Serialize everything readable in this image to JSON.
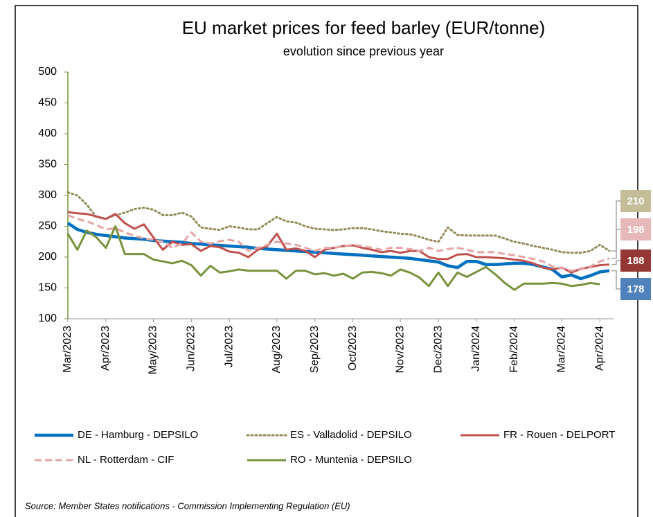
{
  "chart_data": {
    "type": "line",
    "title": "EU market prices for feed barley (EUR/tonne)",
    "subtitle": "evolution since previous year",
    "source": "Source: Member States notifications - Commission Implementing Regulation (EU)",
    "categories": [
      "Mar/2023",
      null,
      null,
      null,
      "Apr/2023",
      null,
      null,
      null,
      null,
      "May/2023",
      null,
      null,
      null,
      "Jun/2023",
      null,
      null,
      null,
      "Jul/2023",
      null,
      null,
      null,
      null,
      "Aug/2023",
      null,
      null,
      null,
      "Sep/2023",
      null,
      null,
      null,
      "Oct/2023",
      null,
      null,
      null,
      null,
      "Nov/2023",
      null,
      null,
      null,
      "Dec/2023",
      null,
      null,
      null,
      "Jan/2024",
      null,
      null,
      null,
      "Feb/2024",
      null,
      null,
      null,
      null,
      "Mar/2024",
      null,
      null,
      null,
      "Apr/2024",
      null
    ],
    "ylim": [
      100,
      500
    ],
    "yticks": [
      100,
      150,
      200,
      250,
      300,
      350,
      400,
      450,
      500
    ],
    "grid": false,
    "series": [
      {
        "name": "DE - Hamburg - DEPSILO",
        "color": "#0070c0",
        "dash": "solid",
        "label_color": "#4f81bd",
        "values": [
          255,
          245,
          240,
          237,
          235,
          233,
          231,
          230,
          229,
          227,
          226,
          225,
          224,
          222,
          221,
          220,
          219,
          218,
          217,
          216,
          214,
          213,
          212,
          211,
          210,
          209,
          208,
          207,
          206,
          205,
          204,
          203,
          202,
          201,
          200,
          199,
          198,
          196,
          194,
          192,
          186,
          183,
          193,
          193,
          188,
          188,
          189,
          190,
          190,
          188,
          184,
          180,
          168,
          171,
          165,
          170,
          176,
          178
        ]
      },
      {
        "name": "ES - Valladolid - DEPSILO",
        "color": "#948a54",
        "dash": "dotted",
        "label_color": "#c4bd97",
        "values": [
          305,
          300,
          285,
          265,
          262,
          268,
          272,
          278,
          280,
          277,
          268,
          268,
          272,
          266,
          248,
          246,
          244,
          250,
          248,
          245,
          245,
          255,
          265,
          258,
          256,
          250,
          246,
          245,
          244,
          245,
          247,
          247,
          245,
          242,
          240,
          238,
          237,
          233,
          228,
          225,
          248,
          236,
          235,
          235,
          235,
          235,
          230,
          225,
          222,
          218,
          215,
          212,
          208,
          207,
          207,
          210,
          220,
          210
        ]
      },
      {
        "name": "FR - Rouen - DELPORT",
        "color": "#c0504d",
        "dash": "solid",
        "label_color": "#953735",
        "values": [
          273,
          271,
          270,
          266,
          262,
          270,
          255,
          246,
          253,
          232,
          212,
          225,
          220,
          221,
          210,
          218,
          216,
          209,
          207,
          200,
          212,
          218,
          238,
          212,
          214,
          210,
          200,
          212,
          215,
          218,
          219,
          215,
          212,
          208,
          210,
          207,
          210,
          210,
          200,
          197,
          197,
          204,
          205,
          200,
          200,
          199,
          198,
          196,
          194,
          190,
          183,
          180,
          183,
          175,
          181,
          184,
          187,
          188
        ]
      },
      {
        "name": "NL - Rotterdam - CIF",
        "color": "#e6a5a5",
        "dash": "dashed",
        "label_color": "#e6b9b8",
        "values": [
          268,
          262,
          258,
          252,
          245,
          247,
          240,
          235,
          230,
          228,
          225,
          215,
          222,
          240,
          225,
          222,
          226,
          228,
          225,
          210,
          215,
          220,
          225,
          222,
          220,
          215,
          210,
          215,
          215,
          218,
          220,
          218,
          215,
          212,
          215,
          215,
          213,
          210,
          215,
          210,
          213,
          215,
          212,
          208,
          208,
          208,
          205,
          203,
          200,
          197,
          193,
          185,
          182,
          178,
          180,
          185,
          193,
          198
        ]
      },
      {
        "name": "RO - Muntenia - DEPSILO",
        "color": "#77933c",
        "dash": "solid",
        "values": [
          238,
          212,
          243,
          232,
          215,
          250,
          205,
          205,
          205,
          196,
          193,
          190,
          194,
          187,
          170,
          186,
          175,
          177,
          180,
          178,
          178,
          178,
          178,
          165,
          178,
          178,
          172,
          174,
          170,
          173,
          165,
          175,
          176,
          174,
          170,
          180,
          175,
          167,
          153,
          175,
          153,
          175,
          168,
          176,
          184,
          172,
          158,
          147,
          157,
          157,
          157,
          158,
          157,
          153,
          155,
          158,
          156,
          null
        ]
      }
    ]
  }
}
